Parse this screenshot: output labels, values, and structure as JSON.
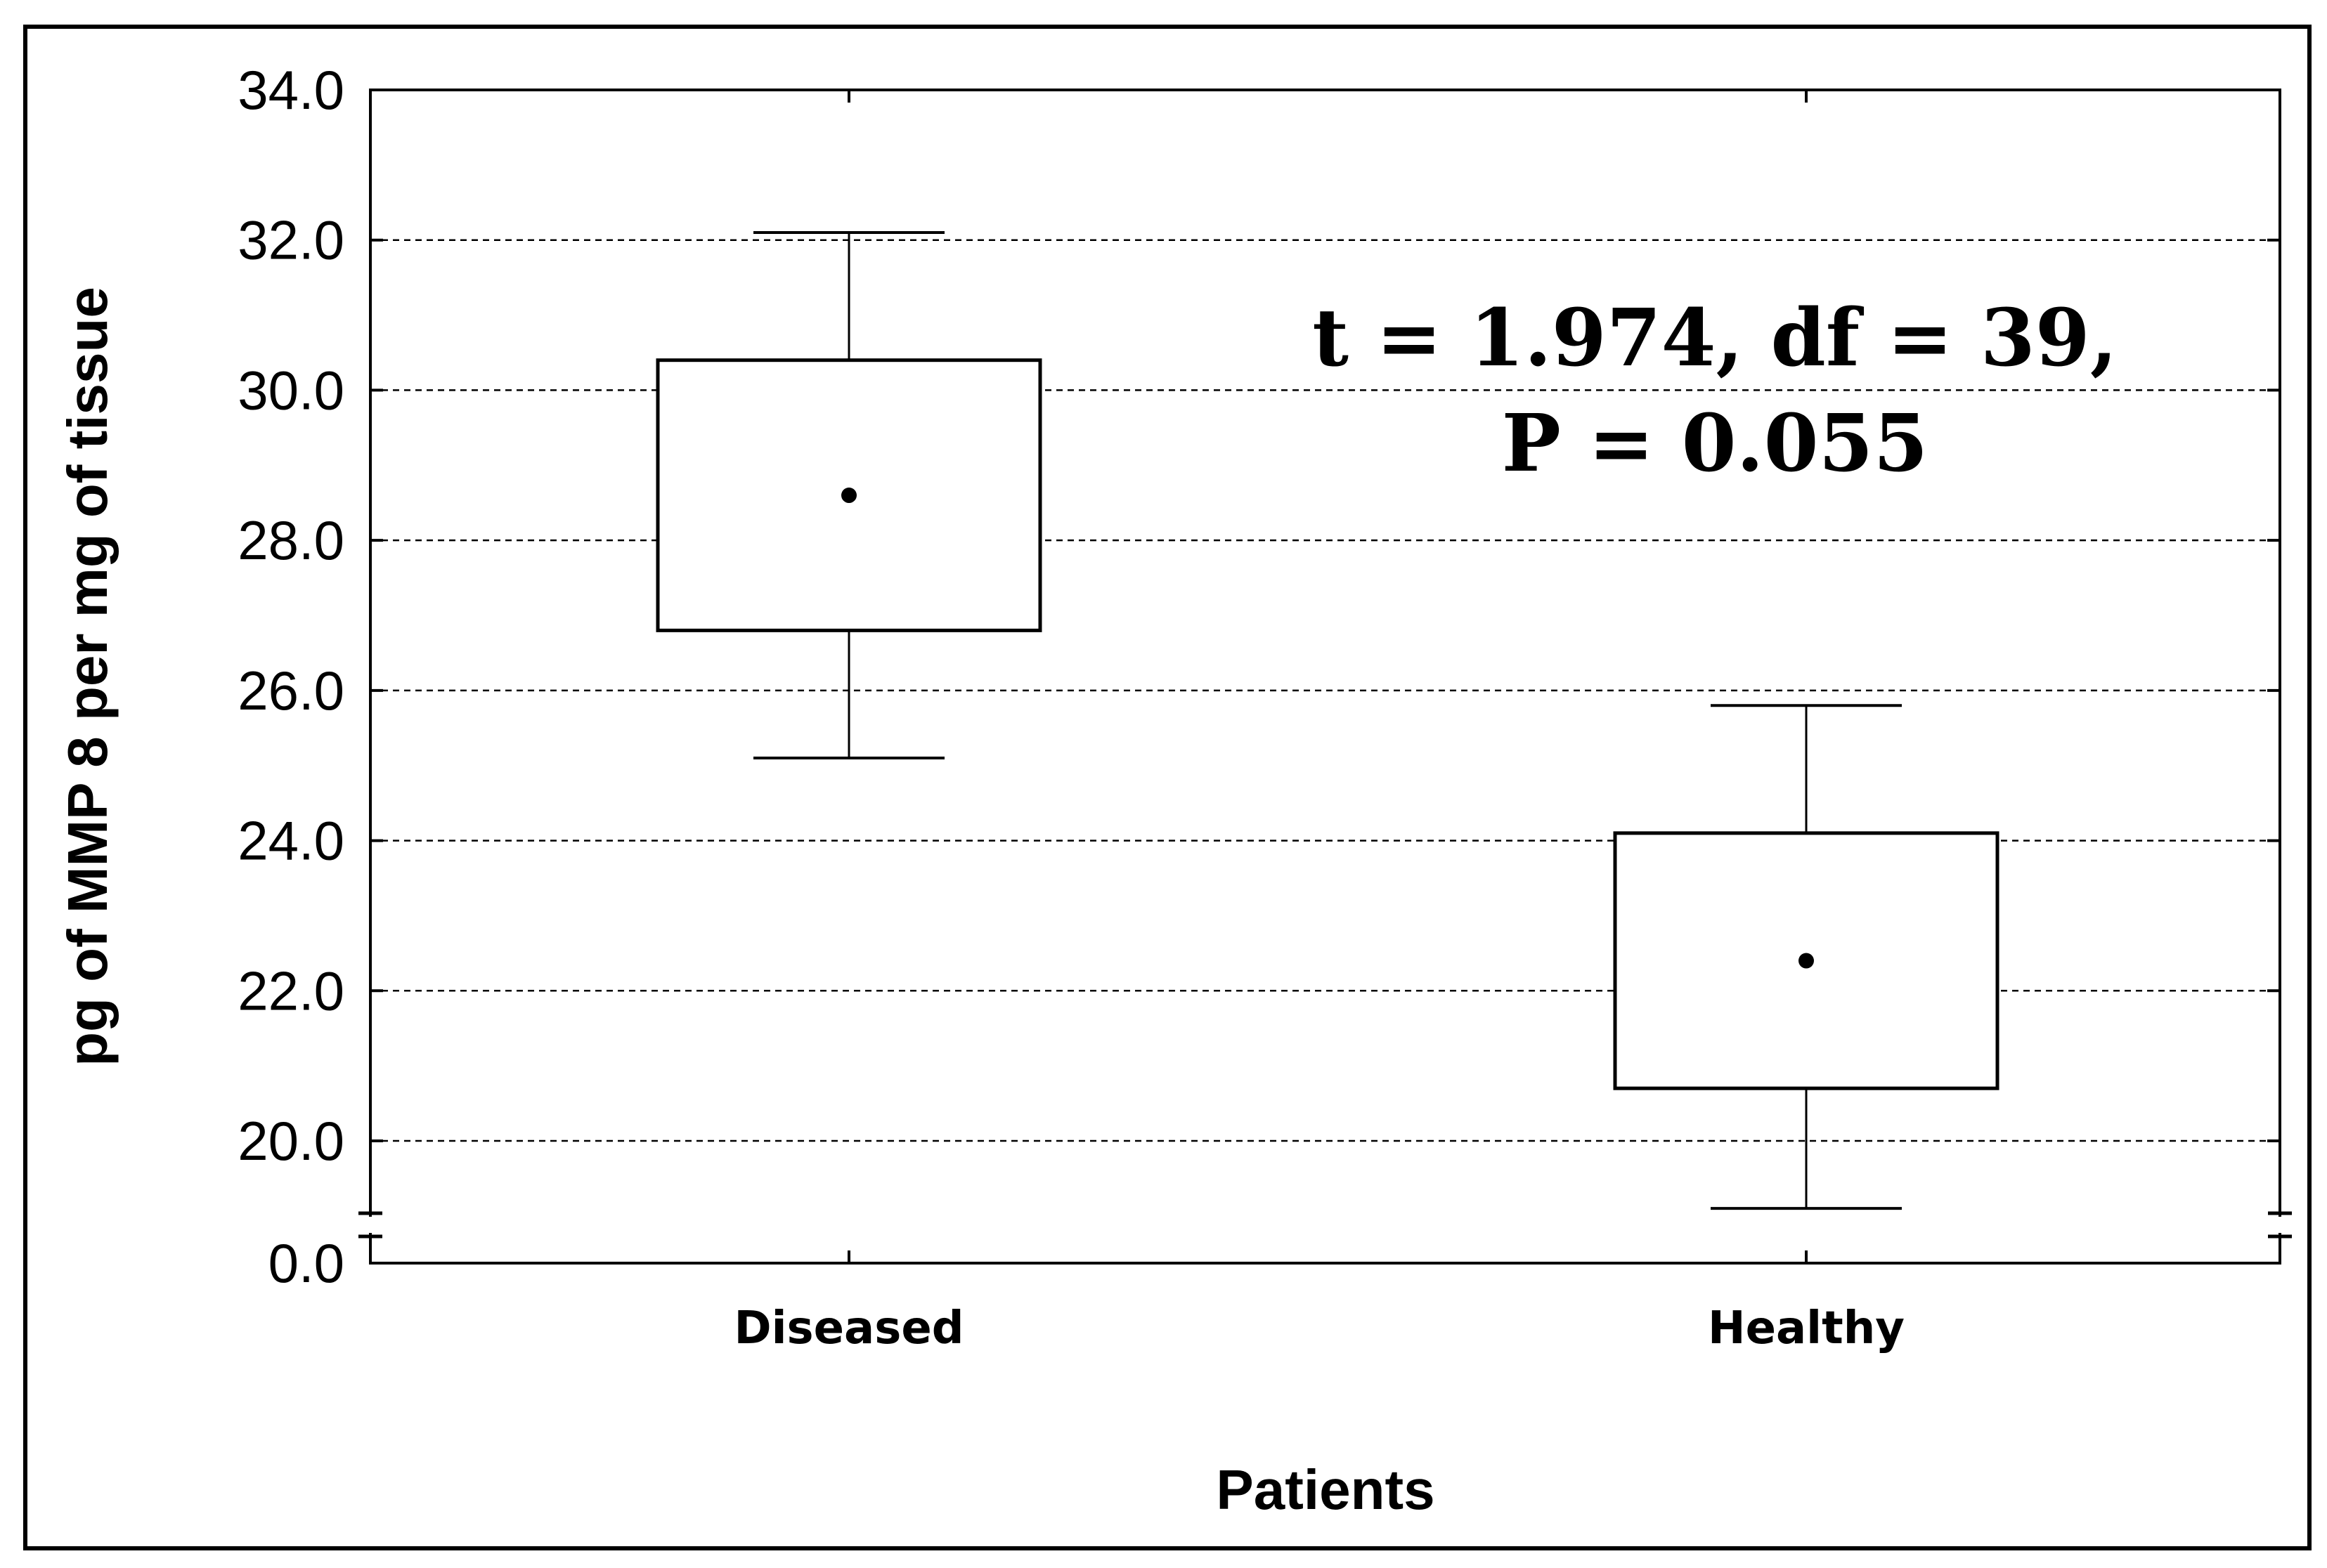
{
  "chart_data": {
    "type": "box",
    "categories": [
      "Diseased",
      "Healthy"
    ],
    "boxes": [
      {
        "category": "Diseased",
        "whisker_low": 25.1,
        "q1": 26.8,
        "mean": 28.6,
        "q3": 30.4,
        "whisker_high": 32.1
      },
      {
        "category": "Healthy",
        "whisker_low": 19.1,
        "q1": 20.7,
        "mean": 22.4,
        "q3": 24.1,
        "whisker_high": 25.8
      }
    ],
    "xlabel": "Patients",
    "ylabel": "pg of MMP 8 per mg of tissue",
    "y_ticks": [
      "34.0",
      "32.0",
      "30.0",
      "28.0",
      "26.0",
      "24.0",
      "22.0",
      "20.0",
      "0.0"
    ],
    "ylim": [
      19,
      34
    ],
    "axis_break": true,
    "grid": "horizontal dashed",
    "annotation_lines": [
      "t = 1.974, df = 39,",
      "P = 0.055"
    ]
  }
}
